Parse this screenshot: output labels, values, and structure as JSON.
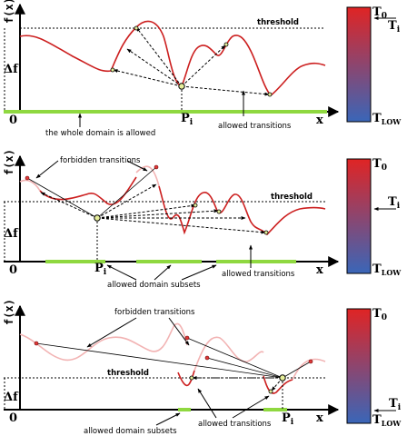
{
  "panels": [
    {
      "f_axis_label": "f(x)",
      "x_axis_label": "x",
      "delta_label": "Δf",
      "origin_label": "0",
      "threshold_label": "threshold",
      "point_label": "P",
      "point_sub": "i",
      "annotations": [
        "the whole domain is allowed",
        "allowed transitions"
      ],
      "colorbar": {
        "top_label": "T",
        "top_sub": "0",
        "bottom_label": "T",
        "bottom_sub": "LOW",
        "marker_label": "T",
        "marker_sub": "i"
      }
    },
    {
      "f_axis_label": "f(x)",
      "x_axis_label": "x",
      "delta_label": "Δf",
      "origin_label": "0",
      "threshold_label": "threshold",
      "point_label": "P",
      "point_sub": "i",
      "annotations": [
        "forbidden transitions",
        "allowed transitions",
        "allowed domain subsets"
      ],
      "colorbar": {
        "top_label": "T",
        "top_sub": "0",
        "bottom_label": "T",
        "bottom_sub": "LOW",
        "marker_label": "T",
        "marker_sub": "i"
      }
    },
    {
      "f_axis_label": "f(x)",
      "x_axis_label": "x",
      "delta_label": "Δf",
      "origin_label": "0",
      "threshold_label": "threshold",
      "point_label": "P",
      "point_sub": "i",
      "annotations": [
        "forbidden transitions",
        "allowed transitions",
        "allowed domain subsets"
      ],
      "colorbar": {
        "top_label": "T",
        "top_sub": "0",
        "bottom_label": "T",
        "bottom_sub": "LOW",
        "marker_label": "T",
        "marker_sub": "i"
      }
    }
  ],
  "colors": {
    "curve": "#cc1f1f",
    "faded_curve": "#f2b3b3",
    "allowed_domain": "#8fd840",
    "gradient_top": "#e02424",
    "gradient_bottom": "#3a66b8",
    "point_fill": "#e6ee9a"
  }
}
